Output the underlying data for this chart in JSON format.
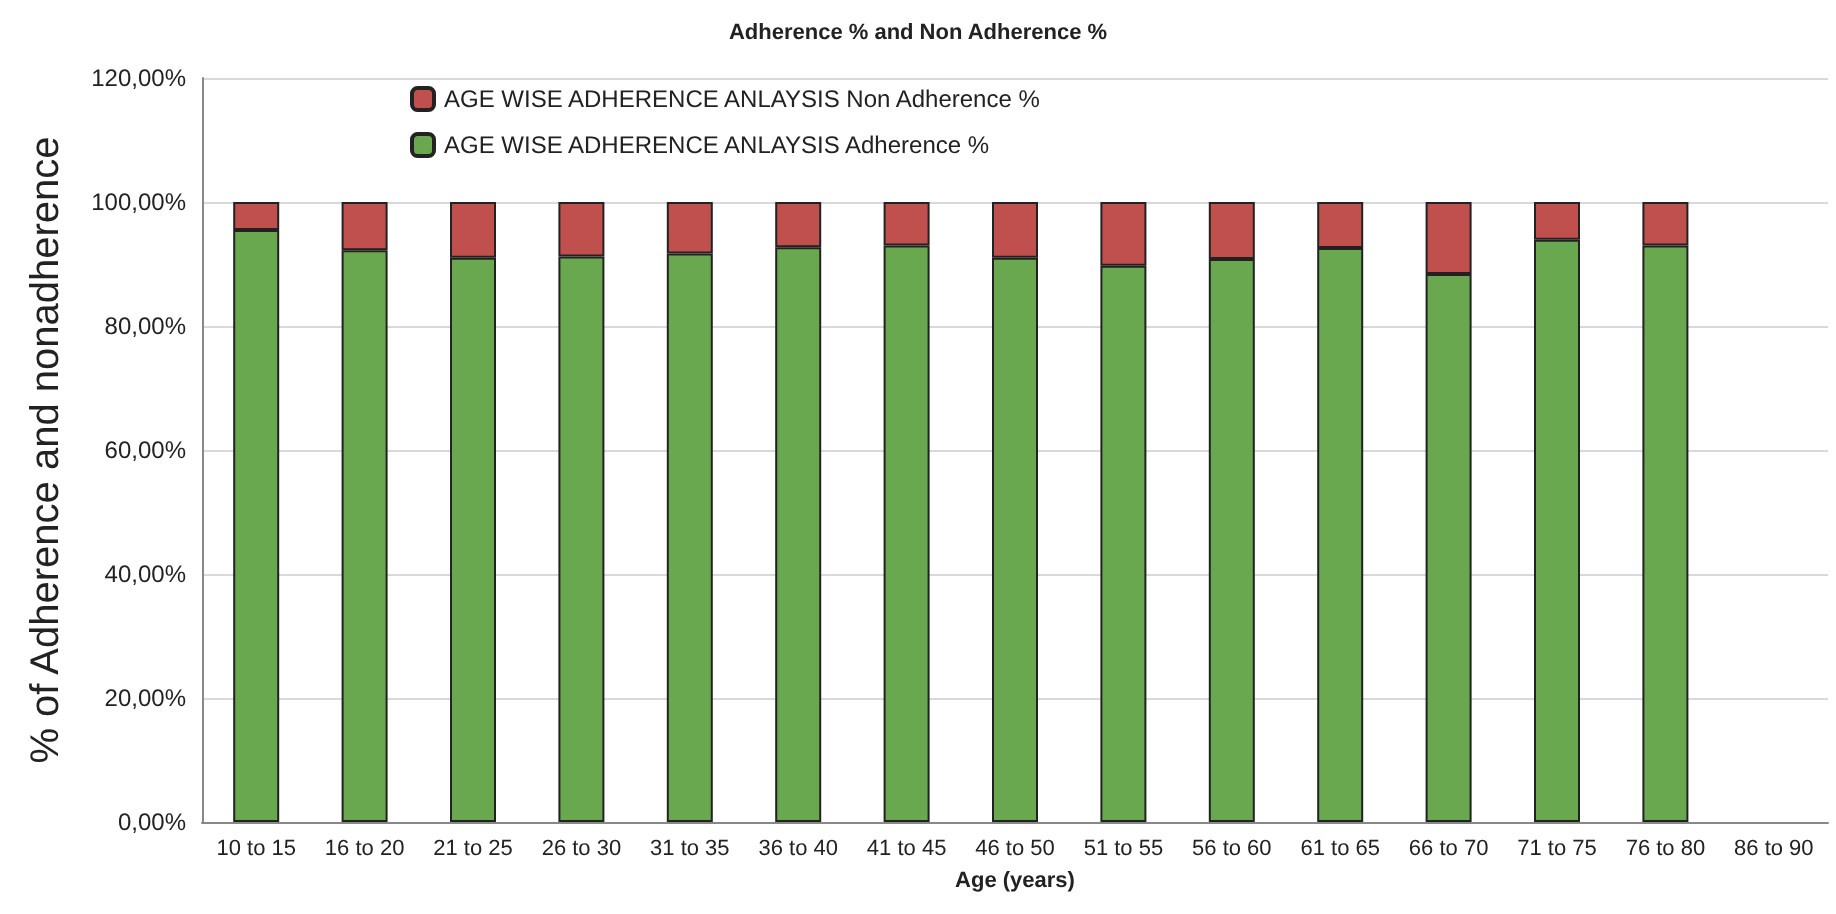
{
  "chart_data": {
    "type": "bar",
    "title": "Adherence % and Non Adherence %",
    "xlabel": "Age (years)",
    "ylabel": "% of Adherence and nonadherence",
    "categories": [
      "10 to 15",
      "16 to 20",
      "21 to 25",
      "26 to 30",
      "31 to 35",
      "36 to 40",
      "41 to 45",
      "46 to 50",
      "51 to 55",
      "56 to 60",
      "61 to 65",
      "66 to 70",
      "71 to 75",
      "76 to 80",
      "86 to 90"
    ],
    "stacked": true,
    "series": [
      {
        "name": "AGE WISE ADHERENCE ANLAYSIS Adherence %",
        "color": "#6aa84f",
        "values": [
          95.5,
          92.2,
          91.0,
          91.2,
          91.7,
          92.7,
          93.0,
          91.0,
          89.7,
          90.8,
          92.6,
          88.4,
          93.9,
          93.0,
          null
        ]
      },
      {
        "name": "AGE WISE ADHERENCE ANLAYSIS Non Adherence %",
        "color": "#c0504d",
        "values": [
          4.5,
          7.8,
          9.0,
          8.8,
          8.3,
          7.3,
          7.0,
          9.0,
          10.3,
          9.2,
          7.4,
          11.6,
          6.1,
          7.0,
          null
        ]
      }
    ],
    "ylim": [
      0,
      120
    ],
    "yticks": [
      {
        "value": 0,
        "label": "0,00%"
      },
      {
        "value": 20,
        "label": "20,00%"
      },
      {
        "value": 40,
        "label": "40,00%"
      },
      {
        "value": 60,
        "label": "60,00%"
      },
      {
        "value": 80,
        "label": "80,00%"
      },
      {
        "value": 100,
        "label": "100,00%"
      },
      {
        "value": 120,
        "label": "120,00%"
      }
    ],
    "grid": "y",
    "legend": "top"
  }
}
